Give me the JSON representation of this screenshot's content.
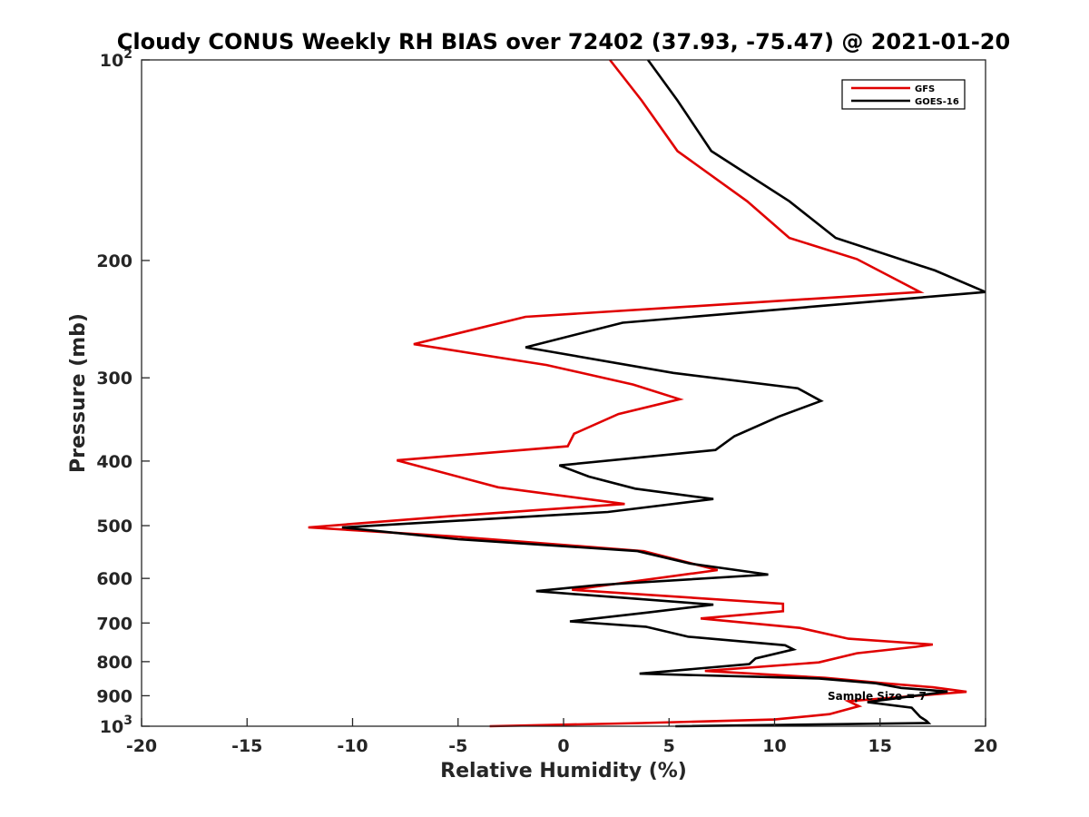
{
  "chart_data": {
    "type": "line",
    "title": "Cloudy CONUS Weekly RH BIAS over 72402 (37.93, -75.47) @ 2021-01-20",
    "xlabel": "Relative Humidity (%)",
    "ylabel": "Pressure (mb)",
    "xlim": [
      -20,
      20
    ],
    "ylim": [
      100,
      1000
    ],
    "y_scale": "log",
    "y_direction": "reversed",
    "x_ticks": [
      "-20",
      "-15",
      "-10",
      "-5",
      "0",
      "5",
      "10",
      "15",
      "20"
    ],
    "y_ticks": [
      {
        "value": 100,
        "base": "10",
        "exp": "2"
      },
      {
        "value": 200,
        "label": "200"
      },
      {
        "value": 300,
        "label": "300"
      },
      {
        "value": 400,
        "label": "400"
      },
      {
        "value": 500,
        "label": "500"
      },
      {
        "value": 600,
        "label": "600"
      },
      {
        "value": 700,
        "label": "700"
      },
      {
        "value": 800,
        "label": "800"
      },
      {
        "value": 900,
        "label": "900"
      },
      {
        "value": 1000,
        "base": "10",
        "exp": "3"
      }
    ],
    "grid": false,
    "legend_position": "top-right",
    "annotation": "Sample Size = 7",
    "series": [
      {
        "name": "GFS",
        "color": "#e00000",
        "points": [
          [
            2.2,
            100
          ],
          [
            3.7,
            115
          ],
          [
            5.4,
            137
          ],
          [
            8.7,
            163
          ],
          [
            10.7,
            185
          ],
          [
            13.9,
            199
          ],
          [
            16.9,
            223
          ],
          [
            -1.8,
            243
          ],
          [
            -7.1,
            267
          ],
          [
            -0.8,
            287
          ],
          [
            3.3,
            307
          ],
          [
            5.5,
            323
          ],
          [
            2.6,
            340
          ],
          [
            0.5,
            364
          ],
          [
            0.2,
            380
          ],
          [
            -7.9,
            399
          ],
          [
            -3.1,
            438
          ],
          [
            2.9,
            464
          ],
          [
            -5.4,
            484
          ],
          [
            -12.1,
            503
          ],
          [
            -5.2,
            519
          ],
          [
            3.8,
            546
          ],
          [
            7.3,
            583
          ],
          [
            0.4,
            624
          ],
          [
            10.4,
            655
          ],
          [
            10.4,
            672
          ],
          [
            6.5,
            689
          ],
          [
            11.2,
            712
          ],
          [
            13.5,
            739
          ],
          [
            17.5,
            754
          ],
          [
            16.7,
            760
          ],
          [
            13.9,
            777
          ],
          [
            12.1,
            802
          ],
          [
            6.7,
            826
          ],
          [
            12.4,
            846
          ],
          [
            15.2,
            862
          ],
          [
            17.5,
            874
          ],
          [
            19.1,
            888
          ],
          [
            13.5,
            917
          ],
          [
            14.0,
            933
          ],
          [
            12.6,
            959
          ],
          [
            10.0,
            977
          ],
          [
            3.7,
            989
          ],
          [
            -3.5,
            1000
          ]
        ]
      },
      {
        "name": "GOES-16",
        "color": "#000000",
        "points": [
          [
            4.0,
            100
          ],
          [
            5.4,
            115
          ],
          [
            7.0,
            137
          ],
          [
            10.7,
            163
          ],
          [
            12.9,
            185
          ],
          [
            17.6,
            207
          ],
          [
            20.0,
            223
          ],
          [
            2.8,
            248
          ],
          [
            -1.8,
            270
          ],
          [
            5.2,
            295
          ],
          [
            11.1,
            311
          ],
          [
            12.2,
            325
          ],
          [
            10.2,
            343
          ],
          [
            8.1,
            367
          ],
          [
            7.2,
            385
          ],
          [
            -0.2,
            406
          ],
          [
            1.2,
            422
          ],
          [
            3.4,
            440
          ],
          [
            7.1,
            456
          ],
          [
            2.1,
            477
          ],
          [
            -10.5,
            503
          ],
          [
            -5.0,
            524
          ],
          [
            3.5,
            546
          ],
          [
            6.0,
            570
          ],
          [
            9.7,
            592
          ],
          [
            1.6,
            614
          ],
          [
            -1.3,
            627
          ],
          [
            7.1,
            657
          ],
          [
            4.0,
            675
          ],
          [
            0.3,
            696
          ],
          [
            3.9,
            709
          ],
          [
            5.9,
            734
          ],
          [
            10.5,
            756
          ],
          [
            10.9,
            767
          ],
          [
            9.1,
            791
          ],
          [
            8.8,
            807
          ],
          [
            3.6,
            834
          ],
          [
            12.1,
            848
          ],
          [
            14.8,
            862
          ],
          [
            16.0,
            876
          ],
          [
            18.2,
            887
          ],
          [
            14.4,
            920
          ],
          [
            16.5,
            938
          ],
          [
            16.9,
            968
          ],
          [
            17.2,
            982
          ],
          [
            17.3,
            989
          ],
          [
            5.3,
            1000
          ]
        ]
      }
    ]
  }
}
